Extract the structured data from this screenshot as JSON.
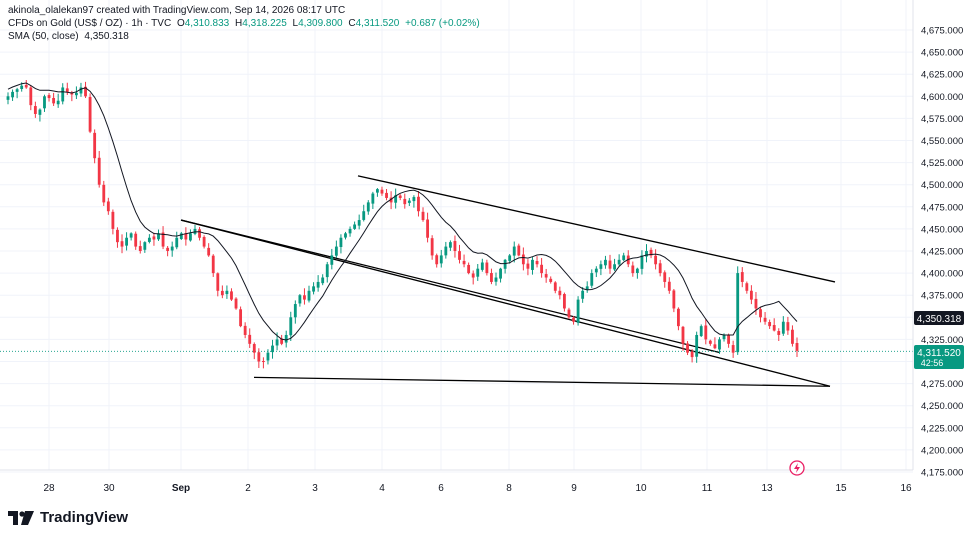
{
  "header": {
    "attribution": "akinola_olalekan97 created with TradingView.com, Sep 14, 2026 08:17 UTC",
    "symbol": "CFDs on Gold (US$ / OZ) · 1h · TVC",
    "ohlc": {
      "open_label": "O",
      "open": "4,310.833",
      "high_label": "H",
      "high": "4,318.225",
      "low_label": "L",
      "low": "4,309.800",
      "close_label": "C",
      "close": "4,311.520",
      "change": "+0.687 (+0.02%)"
    },
    "indicator_name": "SMA (50, close)",
    "indicator_value": "4,350.318"
  },
  "price_axis": {
    "labels": [
      "4,675.000",
      "4,650.000",
      "4,625.000",
      "4,600.000",
      "4,575.000",
      "4,550.000",
      "4,525.000",
      "4,500.000",
      "4,475.000",
      "4,450.000",
      "4,425.000",
      "4,400.000",
      "4,375.000",
      "4,350.000",
      "4,325.000",
      "4,300.000",
      "4,275.000",
      "4,250.000",
      "4,225.000",
      "4,200.000",
      "4,175.000"
    ],
    "sma_badge": "4,350.318",
    "price_badge": "4,311.520",
    "countdown": "42:56"
  },
  "time_axis": {
    "labels": [
      "28",
      "30",
      "Sep",
      "2",
      "3",
      "4",
      "6",
      "8",
      "9",
      "10",
      "11",
      "13",
      "15",
      "16"
    ]
  },
  "brand": {
    "name": "TradingView"
  },
  "colors": {
    "up": "#089981",
    "down": "#f23645",
    "sma": "#131722",
    "trendline": "#000000",
    "grid": "#f0f3fa",
    "badge_bg": "#131722"
  },
  "chart_data": {
    "type": "candlestick",
    "timeframe": "1h",
    "y_range": [
      4160,
      4685
    ],
    "x_range": [
      "Aug 27",
      "Sep 16"
    ],
    "last_close": 4311.52,
    "sma_period": 50,
    "sma_last": 4350.318,
    "closes": [
      4600,
      4605,
      4608,
      4612,
      4610,
      4590,
      4580,
      4585,
      4600,
      4598,
      4592,
      4595,
      4610,
      4605,
      4602,
      4604,
      4610,
      4600,
      4560,
      4530,
      4500,
      4480,
      4470,
      4450,
      4435,
      4430,
      4440,
      4445,
      4430,
      4425,
      4435,
      4440,
      4438,
      4445,
      4430,
      4425,
      4430,
      4440,
      4445,
      4438,
      4445,
      4450,
      4440,
      4430,
      4420,
      4400,
      4380,
      4375,
      4380,
      4370,
      4360,
      4340,
      4330,
      4320,
      4310,
      4300,
      4300,
      4310,
      4318,
      4325,
      4320,
      4330,
      4350,
      4365,
      4375,
      4370,
      4380,
      4385,
      4390,
      4395,
      4410,
      4420,
      4430,
      4440,
      4445,
      4450,
      4455,
      4460,
      4470,
      4480,
      4490,
      4495,
      4490,
      4485,
      4480,
      4488,
      4485,
      4478,
      4482,
      4486,
      4470,
      4460,
      4440,
      4420,
      4410,
      4420,
      4430,
      4435,
      4425,
      4415,
      4410,
      4400,
      4395,
      4405,
      4412,
      4400,
      4390,
      4395,
      4405,
      4415,
      4420,
      4430,
      4420,
      4410,
      4405,
      4415,
      4410,
      4400,
      4395,
      4390,
      4380,
      4375,
      4360,
      4350,
      4345,
      4370,
      4380,
      4385,
      4400,
      4405,
      4410,
      4415,
      4405,
      4410,
      4415,
      4420,
      4410,
      4400,
      4405,
      4420,
      4425,
      4420,
      4410,
      4400,
      4390,
      4380,
      4360,
      4340,
      4320,
      4310,
      4305,
      4330,
      4340,
      4325,
      4320,
      4315,
      4325,
      4330,
      4320,
      4310,
      4400,
      4390,
      4380,
      4370,
      4360,
      4350,
      4345,
      4340,
      4335,
      4330,
      4345,
      4335,
      4320,
      4312
    ],
    "trendlines": [
      {
        "from": [
          "Aug 31 18:00",
          4460
        ],
        "to": [
          "Sep 12 09:00",
          4310
        ]
      },
      {
        "from": [
          "Sep 3 12:00",
          4510
        ],
        "to": [
          "Sep 14 12:00",
          4390
        ]
      },
      {
        "from": [
          "Sep 2 02:00",
          4282
        ],
        "to": [
          "Sep 14 18:00",
          4272
        ]
      }
    ]
  }
}
